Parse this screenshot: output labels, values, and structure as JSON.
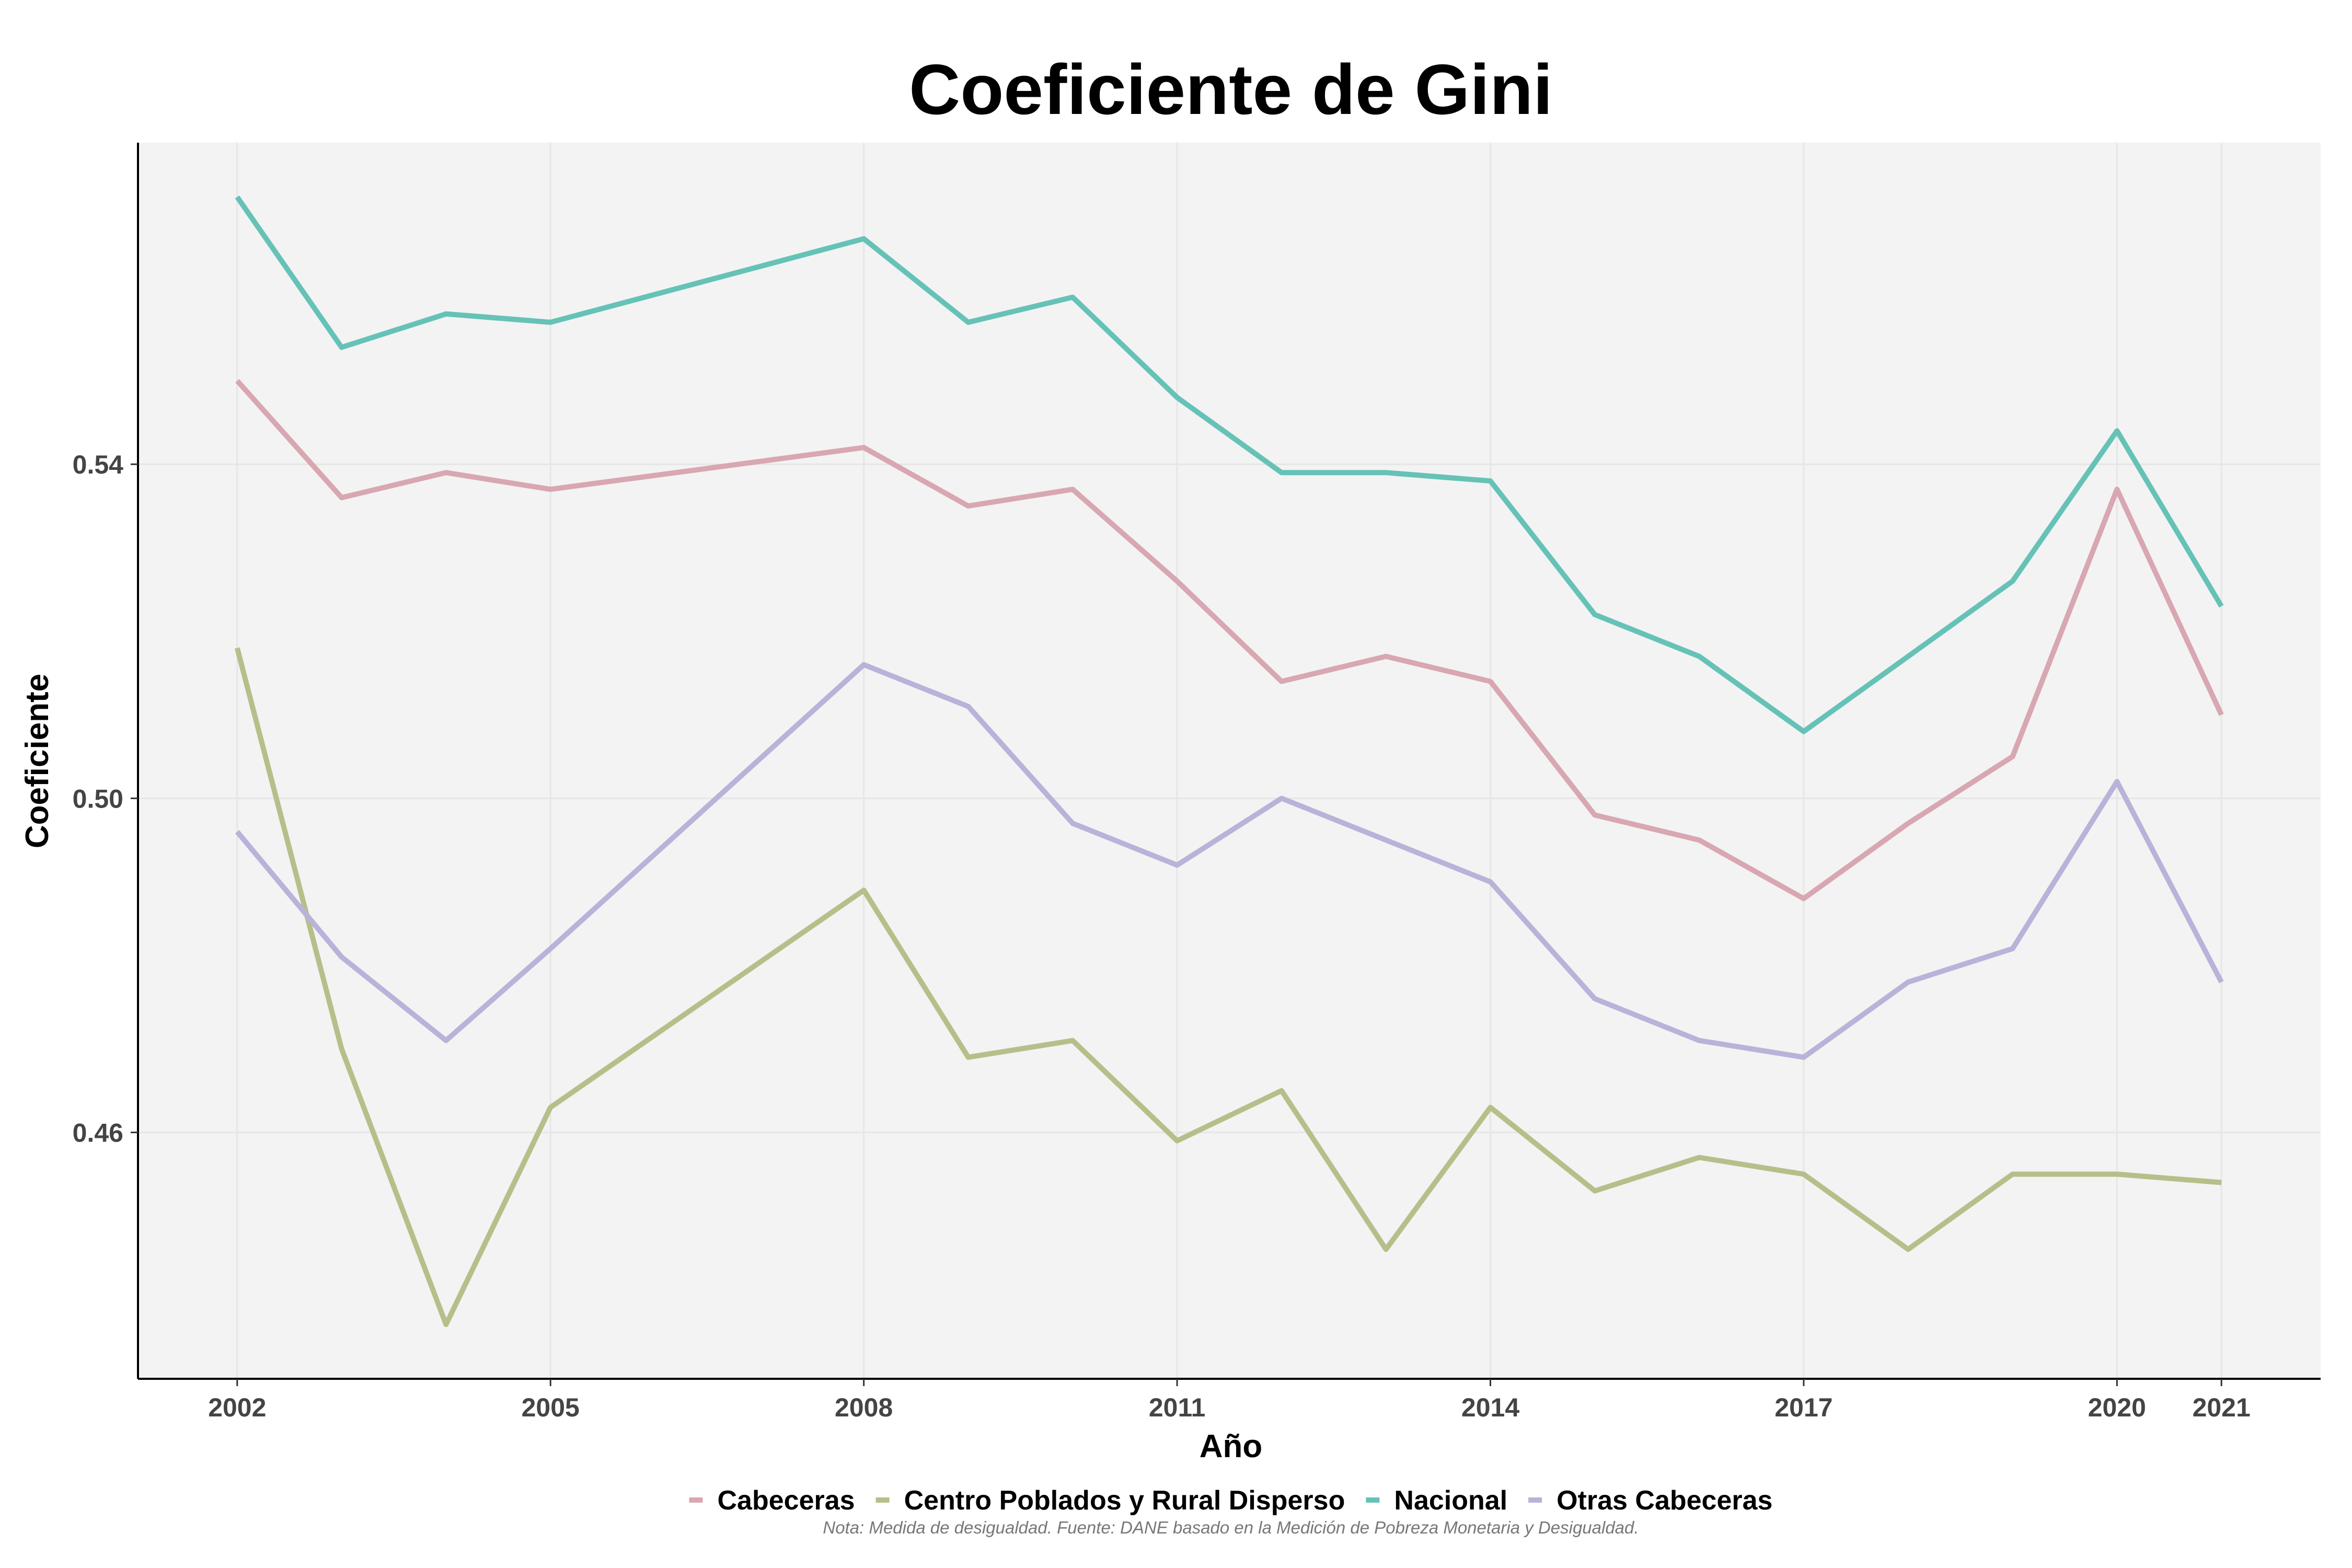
{
  "chart_data": {
    "type": "line",
    "title": "Coeficiente de Gini",
    "xlabel": "Año",
    "ylabel": "Coeficiente",
    "x": [
      2002,
      2003,
      2004,
      2005,
      2008,
      2009,
      2010,
      2011,
      2012,
      2013,
      2014,
      2015,
      2016,
      2017,
      2018,
      2019,
      2020,
      2021
    ],
    "x_ticks": [
      2002,
      2005,
      2008,
      2011,
      2014,
      2017,
      2020,
      2021
    ],
    "y_ticks": [
      "0.46",
      "0.50",
      "0.54"
    ],
    "xlim": [
      2001.05,
      2021.95
    ],
    "ylim": [
      0.4305,
      0.5785
    ],
    "grid": true,
    "legend_position": "bottom",
    "series": [
      {
        "name": "Cabeceras",
        "color": "#d8a7b1",
        "values": [
          0.55,
          0.536,
          0.539,
          0.537,
          0.542,
          0.535,
          0.537,
          0.526,
          0.514,
          0.517,
          0.514,
          0.498,
          0.495,
          0.488,
          0.497,
          0.505,
          0.537,
          0.51
        ]
      },
      {
        "name": "Centro Poblados y Rural Disperso",
        "color": "#b6bf8a",
        "values": [
          0.518,
          0.47,
          0.437,
          0.463,
          0.489,
          0.469,
          0.471,
          0.459,
          0.465,
          0.446,
          0.463,
          0.453,
          0.457,
          0.455,
          0.446,
          0.455,
          0.455,
          0.454
        ]
      },
      {
        "name": "Nacional",
        "color": "#66c2b7",
        "values": [
          0.572,
          0.554,
          0.558,
          0.557,
          0.567,
          0.557,
          0.56,
          0.548,
          0.539,
          0.539,
          0.538,
          0.522,
          0.517,
          0.508,
          0.517,
          0.526,
          0.544,
          0.523
        ]
      },
      {
        "name": "Otras Cabeceras",
        "color": "#b8b3d9",
        "values": [
          0.496,
          0.481,
          0.471,
          0.482,
          0.516,
          0.511,
          0.497,
          0.492,
          0.5,
          0.495,
          0.49,
          0.476,
          0.471,
          0.469,
          0.478,
          0.482,
          0.502,
          0.478
        ]
      }
    ]
  },
  "note": "Nota: Medida de desigualdad. Fuente: DANE basado en la Medición de Pobreza Monetaria y Desigualdad."
}
